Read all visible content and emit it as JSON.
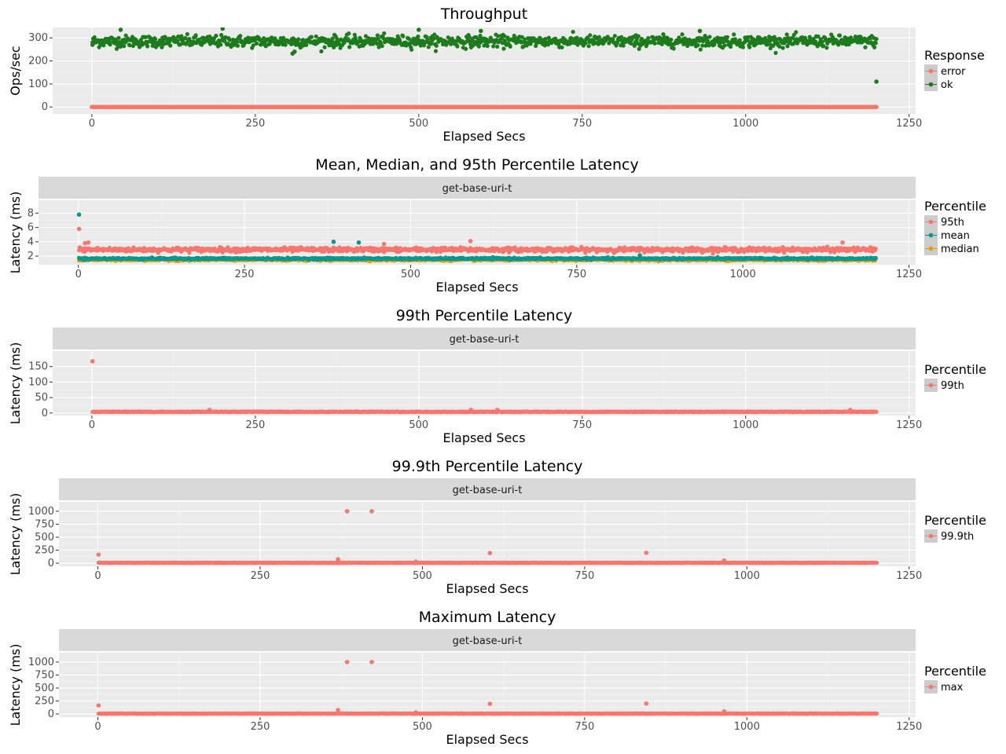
{
  "chart_data": [
    {
      "type": "scatter",
      "title": "Throughput",
      "xlabel": "Elapsed Secs",
      "ylabel": "Ops/sec",
      "xlim": [
        -60,
        1260
      ],
      "ylim": [
        -30,
        345
      ],
      "xticks": [
        0,
        250,
        500,
        750,
        1000,
        1250
      ],
      "yticks": [
        0,
        100,
        200,
        300
      ],
      "grid": true,
      "facet": "",
      "legend": {
        "title": "Response",
        "position": "right"
      },
      "series": [
        {
          "name": "error",
          "color": "#F8766D",
          "description_values": {
            "x_range": [
              0,
              1200
            ],
            "y_typical": 0
          },
          "points": [
            [
              0,
              0
            ],
            [
              100,
              0
            ],
            [
              200,
              0
            ],
            [
              300,
              0
            ],
            [
              400,
              0
            ],
            [
              500,
              0
            ],
            [
              600,
              0
            ],
            [
              700,
              0
            ],
            [
              800,
              0
            ],
            [
              900,
              0
            ],
            [
              1000,
              0
            ],
            [
              1100,
              0
            ],
            [
              1200,
              0
            ]
          ]
        },
        {
          "name": "ok",
          "color": "#1C7C1C",
          "description_values": {
            "x_range": [
              0,
              1200
            ],
            "y_typical": 285,
            "y_spread": 25
          },
          "points": [
            [
              1,
              270
            ],
            [
              44,
              335
            ],
            [
              200,
              340
            ],
            [
              307,
              232
            ],
            [
              310,
              240
            ],
            [
              500,
              335
            ],
            [
              595,
              330
            ],
            [
              930,
              330
            ],
            [
              1200,
              110
            ]
          ]
        }
      ]
    },
    {
      "type": "scatter",
      "title": "Mean, Median, and 95th Percentile Latency",
      "xlabel": "Elapsed Secs",
      "ylabel": "Latency (ms)",
      "xlim": [
        -60,
        1260
      ],
      "ylim": [
        0.8,
        9.8
      ],
      "xticks": [
        0,
        250,
        500,
        750,
        1000,
        1250
      ],
      "yticks": [
        2,
        4,
        6,
        8
      ],
      "grid": true,
      "facet": "get-base-uri-t",
      "legend": {
        "title": "Percentile",
        "position": "right"
      },
      "series": [
        {
          "name": "95th",
          "color": "#F8766D",
          "description_values": {
            "y_typical": 2.9,
            "y_spread": 0.3
          },
          "points": [
            [
              1,
              5.8
            ],
            [
              2,
              3.2
            ],
            [
              10,
              3.8
            ],
            [
              15,
              3.9
            ],
            [
              460,
              3.7
            ],
            [
              590,
              4.1
            ],
            [
              1150,
              3.9
            ]
          ]
        },
        {
          "name": "mean",
          "color": "#00998F",
          "description_values": {
            "y_typical": 1.65,
            "y_spread": 0.12
          },
          "points": [
            [
              1,
              7.8
            ],
            [
              384,
              4.0
            ],
            [
              422,
              3.9
            ],
            [
              845,
              2.1
            ]
          ]
        },
        {
          "name": "median",
          "color": "#E69F00",
          "description_values": {
            "y_typical": 1.5,
            "y_spread": 0.15
          },
          "points": []
        }
      ]
    },
    {
      "type": "scatter",
      "title": "99th Percentile Latency",
      "xlabel": "Elapsed Secs",
      "ylabel": "Latency (ms)",
      "xlim": [
        -60,
        1260
      ],
      "ylim": [
        -8,
        200
      ],
      "xticks": [
        0,
        250,
        500,
        750,
        1000,
        1250
      ],
      "yticks": [
        0,
        50,
        100,
        150
      ],
      "grid": true,
      "facet": "get-base-uri-t",
      "legend": {
        "title": "Percentile",
        "position": "right"
      },
      "series": [
        {
          "name": "99th",
          "color": "#F8766D",
          "description_values": {
            "y_typical": 4,
            "y_spread": 2
          },
          "points": [
            [
              1,
              167
            ],
            [
              180,
              10
            ],
            [
              580,
              10
            ],
            [
              620,
              10
            ],
            [
              1160,
              10
            ]
          ]
        }
      ]
    },
    {
      "type": "scatter",
      "title": "99.9th Percentile Latency",
      "xlabel": "Elapsed Secs",
      "ylabel": "Latency (ms)",
      "xlim": [
        -60,
        1260
      ],
      "ylim": [
        -60,
        1180
      ],
      "xticks": [
        0,
        250,
        500,
        750,
        1000,
        1250
      ],
      "yticks": [
        0,
        250,
        500,
        750,
        1000
      ],
      "grid": true,
      "facet": "get-base-uri-t",
      "legend": {
        "title": "Percentile",
        "position": "right"
      },
      "series": [
        {
          "name": "99.9th",
          "color": "#F8766D",
          "description_values": {
            "y_typical": 8,
            "y_spread": 6
          },
          "points": [
            [
              1,
              165
            ],
            [
              370,
              75
            ],
            [
              384,
              1000
            ],
            [
              422,
              1000
            ],
            [
              490,
              30
            ],
            [
              604,
              195
            ],
            [
              845,
              200
            ],
            [
              965,
              50
            ]
          ]
        }
      ]
    },
    {
      "type": "scatter",
      "title": "Maximum Latency",
      "xlabel": "Elapsed Secs",
      "ylabel": "Latency (ms)",
      "xlim": [
        -60,
        1260
      ],
      "ylim": [
        -60,
        1180
      ],
      "xticks": [
        0,
        250,
        500,
        750,
        1000,
        1250
      ],
      "yticks": [
        0,
        250,
        500,
        750,
        1000
      ],
      "grid": true,
      "facet": "get-base-uri-t",
      "legend": {
        "title": "Percentile",
        "position": "right"
      },
      "series": [
        {
          "name": "max",
          "color": "#F8766D",
          "description_values": {
            "y_typical": 8,
            "y_spread": 6
          },
          "points": [
            [
              1,
              165
            ],
            [
              370,
              75
            ],
            [
              384,
              1000
            ],
            [
              422,
              1000
            ],
            [
              490,
              30
            ],
            [
              604,
              195
            ],
            [
              845,
              200
            ],
            [
              965,
              50
            ]
          ]
        }
      ]
    }
  ]
}
